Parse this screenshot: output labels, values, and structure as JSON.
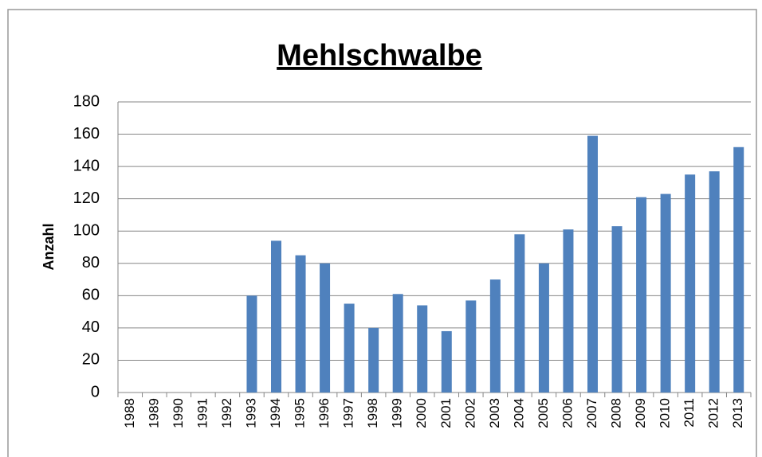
{
  "chart_data": {
    "type": "bar",
    "title": "Mehlschwalbe",
    "y_label": "Anzahl",
    "categories": [
      "1988",
      "1989",
      "1990",
      "1991",
      "1992",
      "1993",
      "1994",
      "1995",
      "1996",
      "1997",
      "1998",
      "1999",
      "2000",
      "2001",
      "2002",
      "2003",
      "2004",
      "2005",
      "2006",
      "2007",
      "2008",
      "2009",
      "2010",
      "2011",
      "2012",
      "2013"
    ],
    "values": [
      0,
      0,
      0,
      0,
      0,
      60,
      94,
      85,
      80,
      55,
      40,
      61,
      54,
      38,
      57,
      70,
      98,
      80,
      101,
      159,
      103,
      121,
      123,
      135,
      137,
      152
    ],
    "color": "#4f81bd",
    "ylim": [
      0,
      180
    ],
    "yticks": [
      0,
      20,
      40,
      60,
      80,
      100,
      120,
      140,
      160,
      180
    ],
    "grid": true
  }
}
